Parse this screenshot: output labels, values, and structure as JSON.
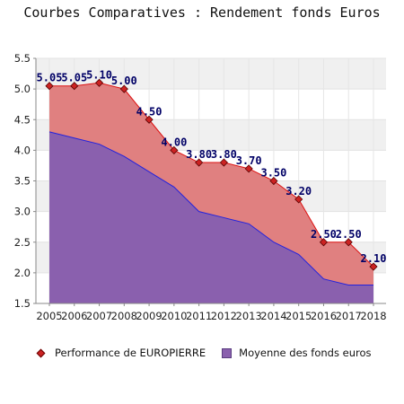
{
  "chart_data": {
    "type": "area",
    "title": "Courbes Comparatives : Rendement fonds Euros",
    "categories": [
      "2005",
      "2006",
      "2007",
      "2008",
      "2009",
      "2010",
      "2011",
      "2012",
      "2013",
      "2014",
      "2015",
      "2016",
      "2017",
      "2018"
    ],
    "series": [
      {
        "name": "Performance de EUROPIERRE",
        "values": [
          5.05,
          5.05,
          5.1,
          5.0,
          4.5,
          4.0,
          3.8,
          3.8,
          3.7,
          3.5,
          3.2,
          2.5,
          2.5,
          2.1
        ],
        "labels": [
          "5.05",
          "5.05",
          "5.10",
          "5.00",
          "4.50",
          "4.00",
          "3.80",
          "3.80",
          "3.70",
          "3.50",
          "3.20",
          "2.50",
          "2.50",
          "2.10"
        ],
        "color": "#e08080",
        "line_color": "#dd1111",
        "marker_color": "#cc2222"
      },
      {
        "name": "Moyenne des fonds euros",
        "values": [
          4.3,
          4.2,
          4.1,
          3.9,
          3.65,
          3.4,
          3.0,
          2.9,
          2.8,
          2.5,
          2.3,
          1.9,
          1.8,
          1.8
        ],
        "color": "#8a60ae",
        "line_color": "#2222dd"
      }
    ],
    "ylim": [
      1.5,
      5.5
    ],
    "yticks": [
      "1.5",
      "2.0",
      "2.5",
      "3.0",
      "3.5",
      "4.0",
      "4.5",
      "5.0",
      "5.5"
    ],
    "grid": true,
    "legend_position": "bottom"
  }
}
